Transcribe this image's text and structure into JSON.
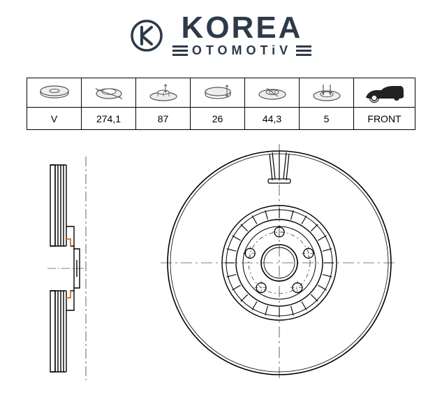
{
  "logo": {
    "brand_main": "KOREA",
    "brand_sub": "OTOMOTiV",
    "color_primary": "#2d3a4a",
    "k_circle_stroke": "#2d3a4a"
  },
  "spec_table": {
    "border_color": "#000000",
    "text_color": "#000000",
    "font_size": 14,
    "columns": [
      {
        "icon": "disc-type-icon",
        "value": "V"
      },
      {
        "icon": "diameter-icon",
        "value": "274,1"
      },
      {
        "icon": "height-icon",
        "value": "87"
      },
      {
        "icon": "thickness-icon",
        "value": "26"
      },
      {
        "icon": "center-bore-icon",
        "value": "44,3"
      },
      {
        "icon": "bolt-holes-icon",
        "value": "5"
      },
      {
        "icon": "position-icon",
        "value": "FRONT"
      }
    ]
  },
  "drawing": {
    "stroke_color": "#000000",
    "centerline_color": "#000000",
    "highlight_color": "#d97a3a",
    "background": "#ffffff",
    "disc": {
      "outer_diameter": 274.1,
      "center_bore": 44.3,
      "height": 87,
      "thickness": 26,
      "bolt_holes": 5,
      "type": "V",
      "position": "FRONT"
    }
  }
}
